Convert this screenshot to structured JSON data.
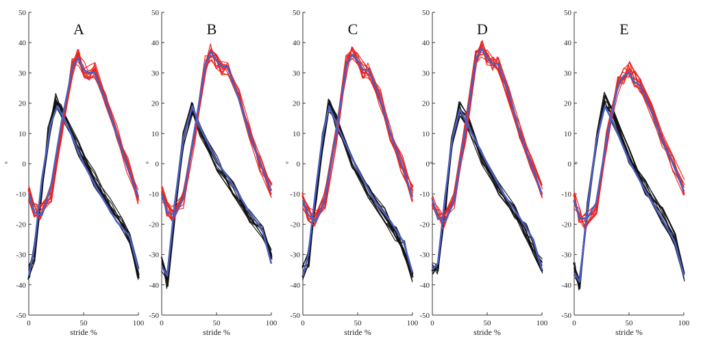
{
  "chart_data": [
    {
      "type": "line",
      "title": "A",
      "xlabel": "stride %",
      "ylabel": "°",
      "xlim": [
        0,
        100
      ],
      "ylim": [
        -50,
        50
      ],
      "xticks": [
        0,
        50,
        100
      ],
      "yticks": [
        -50,
        -40,
        -30,
        -20,
        -10,
        0,
        10,
        20,
        30,
        40,
        50
      ],
      "grid": false,
      "colors": {
        "black": "#111111",
        "red": "#e8231f",
        "blue": "#4a5fc2"
      },
      "series": [
        {
          "group": "black",
          "x": [
            0,
            5,
            12,
            18,
            25,
            30,
            45,
            60,
            75,
            85,
            92,
            100
          ],
          "y": [
            -36,
            -30,
            -8,
            10,
            21,
            17,
            5,
            -5,
            -14,
            -20,
            -24,
            -37
          ]
        },
        {
          "group": "red",
          "x": [
            0,
            5,
            10,
            20,
            30,
            40,
            45,
            50,
            55,
            60,
            70,
            80,
            90,
            100
          ],
          "y": [
            -10,
            -15,
            -16,
            -10,
            10,
            32,
            35,
            31,
            30,
            31,
            22,
            10,
            -1,
            -11
          ]
        },
        {
          "group": "blue",
          "x": [
            0,
            5,
            12,
            20,
            26,
            35,
            50,
            65,
            80,
            92,
            100
          ],
          "y": [
            -37,
            -28,
            -5,
            13,
            19,
            13,
            0,
            -10,
            -19,
            -24,
            -35
          ]
        },
        {
          "group": "blue",
          "x": [
            0,
            5,
            12,
            20,
            30,
            40,
            45,
            50,
            55,
            60,
            70,
            80,
            90,
            100
          ],
          "y": [
            -10,
            -16,
            -17,
            -8,
            14,
            32,
            35,
            31,
            30,
            30,
            21,
            10,
            -1,
            -11
          ]
        }
      ]
    },
    {
      "type": "line",
      "title": "B",
      "xlabel": "stride %",
      "ylabel": "°",
      "xlim": [
        0,
        100
      ],
      "ylim": [
        -50,
        50
      ],
      "xticks": [
        0,
        50,
        100
      ],
      "yticks": [
        -50,
        -40,
        -30,
        -20,
        -10,
        0,
        10,
        20,
        30,
        40,
        50
      ],
      "grid": false,
      "colors": {
        "black": "#111111",
        "red": "#e8231f",
        "blue": "#4a5fc2"
      },
      "series": [
        {
          "group": "black",
          "x": [
            0,
            5,
            12,
            20,
            28,
            35,
            50,
            65,
            80,
            92,
            100
          ],
          "y": [
            -33,
            -39,
            -15,
            8,
            19,
            11,
            0,
            -8,
            -17,
            -22,
            -31
          ]
        },
        {
          "group": "red",
          "x": [
            0,
            5,
            10,
            20,
            30,
            40,
            45,
            50,
            55,
            60,
            70,
            80,
            90,
            100
          ],
          "y": [
            -10,
            -15,
            -17,
            -12,
            10,
            33,
            37,
            34,
            32,
            32,
            22,
            10,
            0,
            -9
          ]
        },
        {
          "group": "blue",
          "x": [
            0,
            5,
            12,
            20,
            28,
            35,
            50,
            65,
            80,
            92,
            100
          ],
          "y": [
            -34,
            -37,
            -13,
            9,
            19,
            12,
            1,
            -7,
            -16,
            -22,
            -33
          ]
        },
        {
          "group": "blue",
          "x": [
            0,
            5,
            12,
            20,
            30,
            40,
            45,
            50,
            55,
            60,
            70,
            80,
            90,
            100
          ],
          "y": [
            -10,
            -16,
            -17,
            -11,
            11,
            33,
            37,
            34,
            32,
            32,
            22,
            10,
            0,
            -9
          ]
        }
      ]
    },
    {
      "type": "line",
      "title": "C",
      "xlabel": "stride %",
      "ylabel": "°",
      "xlim": [
        0,
        100
      ],
      "ylim": [
        -50,
        50
      ],
      "xticks": [
        0,
        50,
        100
      ],
      "yticks": [
        -50,
        -40,
        -30,
        -20,
        -10,
        0,
        10,
        20,
        30,
        40,
        50
      ],
      "grid": false,
      "colors": {
        "black": "#111111",
        "red": "#e8231f",
        "blue": "#4a5fc2"
      },
      "series": [
        {
          "group": "black",
          "x": [
            0,
            5,
            12,
            18,
            24,
            30,
            45,
            60,
            75,
            85,
            92,
            100
          ],
          "y": [
            -36,
            -32,
            -10,
            8,
            19,
            14,
            0,
            -10,
            -17,
            -23,
            -28,
            -37
          ]
        },
        {
          "group": "red",
          "x": [
            0,
            5,
            10,
            20,
            30,
            40,
            45,
            50,
            55,
            60,
            70,
            80,
            90,
            100
          ],
          "y": [
            -12,
            -17,
            -18,
            -12,
            8,
            33,
            36,
            34,
            31,
            31,
            22,
            10,
            0,
            -10
          ]
        },
        {
          "group": "blue",
          "x": [
            0,
            5,
            12,
            18,
            24,
            32,
            50,
            65,
            80,
            92,
            100
          ],
          "y": [
            -37,
            -30,
            -8,
            9,
            19,
            12,
            -2,
            -12,
            -19,
            -26,
            -36
          ]
        },
        {
          "group": "blue",
          "x": [
            0,
            5,
            12,
            20,
            30,
            40,
            45,
            50,
            55,
            60,
            70,
            80,
            90,
            100
          ],
          "y": [
            -12,
            -17,
            -19,
            -12,
            9,
            33,
            36,
            34,
            31,
            31,
            22,
            10,
            0,
            -11
          ]
        }
      ]
    },
    {
      "type": "line",
      "title": "D",
      "xlabel": "stride %",
      "ylabel": "°",
      "xlim": [
        0,
        100
      ],
      "ylim": [
        -50,
        50
      ],
      "xticks": [
        0,
        50,
        100
      ],
      "yticks": [
        -50,
        -40,
        -30,
        -20,
        -10,
        0,
        10,
        20,
        30,
        40,
        50
      ],
      "grid": false,
      "colors": {
        "black": "#111111",
        "red": "#e8231f",
        "blue": "#4a5fc2"
      },
      "series": [
        {
          "group": "black",
          "x": [
            0,
            5,
            12,
            18,
            25,
            32,
            45,
            60,
            75,
            85,
            92,
            100
          ],
          "y": [
            -34,
            -35,
            -12,
            7,
            18,
            14,
            2,
            -8,
            -16,
            -22,
            -27,
            -34
          ]
        },
        {
          "group": "red",
          "x": [
            0,
            5,
            10,
            20,
            30,
            40,
            45,
            50,
            55,
            60,
            70,
            80,
            90,
            100
          ],
          "y": [
            -12,
            -17,
            -19,
            -12,
            10,
            35,
            38,
            35,
            33,
            33,
            23,
            10,
            0,
            -9
          ]
        },
        {
          "group": "blue",
          "x": [
            0,
            5,
            12,
            18,
            25,
            32,
            50,
            65,
            80,
            92,
            100
          ],
          "y": [
            -35,
            -33,
            -10,
            8,
            18,
            13,
            0,
            -10,
            -18,
            -25,
            -35
          ]
        },
        {
          "group": "blue",
          "x": [
            0,
            5,
            12,
            20,
            30,
            40,
            45,
            50,
            55,
            60,
            70,
            80,
            90,
            100
          ],
          "y": [
            -12,
            -18,
            -19,
            -12,
            11,
            35,
            38,
            35,
            33,
            33,
            23,
            10,
            0,
            -10
          ]
        }
      ]
    },
    {
      "type": "line",
      "title": "E",
      "xlabel": "stride %",
      "ylabel": "°",
      "xlim": [
        0,
        100
      ],
      "ylim": [
        -50,
        50
      ],
      "xticks": [
        0,
        50,
        100
      ],
      "yticks": [
        -50,
        -40,
        -30,
        -20,
        -10,
        0,
        10,
        20,
        30,
        40,
        50
      ],
      "grid": false,
      "colors": {
        "black": "#111111",
        "red": "#e8231f",
        "blue": "#4a5fc2"
      },
      "series": [
        {
          "group": "black",
          "x": [
            0,
            5,
            12,
            20,
            28,
            35,
            50,
            65,
            80,
            92,
            100
          ],
          "y": [
            -35,
            -40,
            -15,
            8,
            21,
            16,
            3,
            -8,
            -17,
            -25,
            -37
          ]
        },
        {
          "group": "red",
          "x": [
            0,
            5,
            10,
            20,
            30,
            40,
            45,
            50,
            55,
            60,
            70,
            80,
            90,
            100
          ],
          "y": [
            -12,
            -17,
            -19,
            -14,
            8,
            26,
            29,
            31,
            28,
            26,
            18,
            8,
            0,
            -8
          ]
        },
        {
          "group": "blue",
          "x": [
            0,
            5,
            12,
            20,
            28,
            35,
            50,
            65,
            80,
            92,
            100
          ],
          "y": [
            -36,
            -39,
            -15,
            7,
            19,
            14,
            1,
            -9,
            -18,
            -26,
            -37
          ]
        },
        {
          "group": "blue",
          "x": [
            0,
            5,
            12,
            20,
            30,
            40,
            45,
            50,
            55,
            60,
            70,
            80,
            90,
            100
          ],
          "y": [
            -12,
            -18,
            -18,
            -13,
            9,
            26,
            29,
            30,
            27,
            26,
            18,
            8,
            0,
            -9
          ]
        }
      ]
    }
  ]
}
